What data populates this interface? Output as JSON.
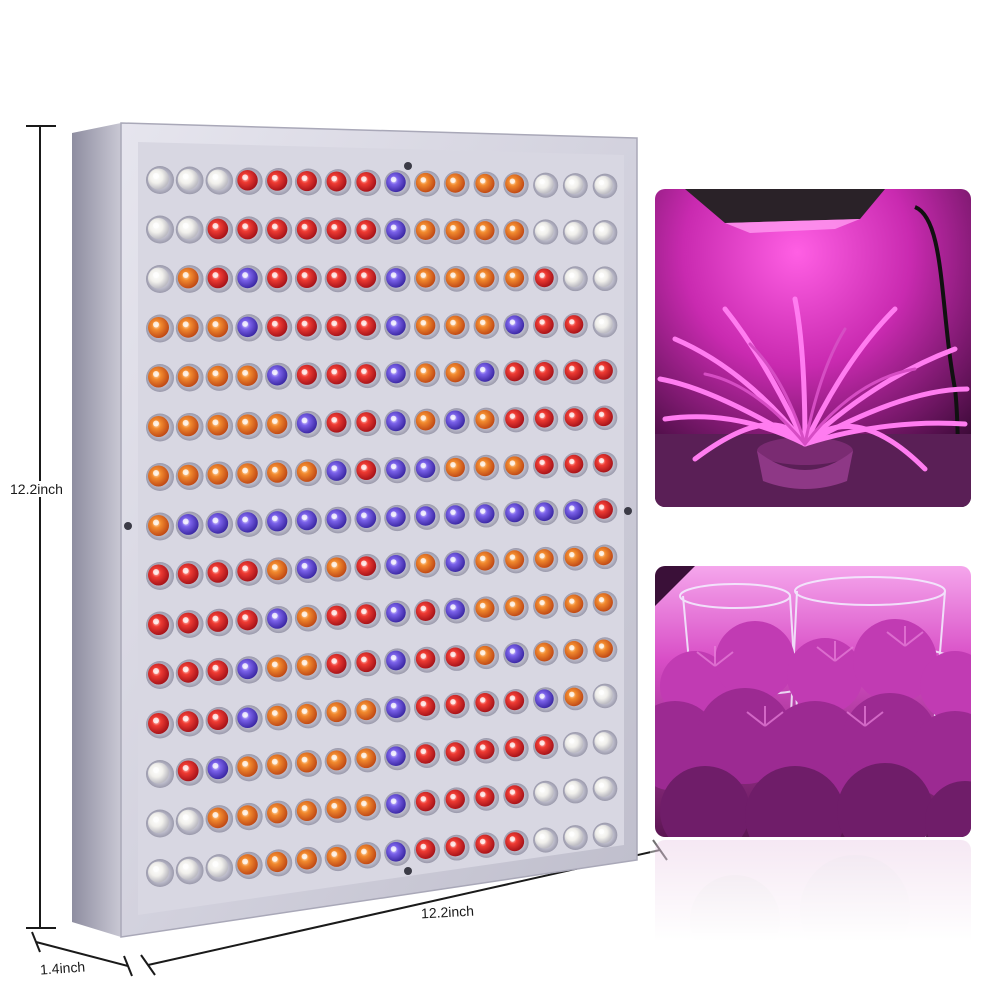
{
  "dimensions": {
    "height": "12.2inch",
    "width": "12.2inch",
    "depth": "1.4inch"
  },
  "colors": {
    "panel_frame": "#b9b8c6",
    "panel_face": "#d9d8e2",
    "led_red": "#e0322d",
    "led_orange": "#e9752a",
    "led_blue": "#6c4fd8",
    "led_white": "#f2f2f0",
    "grow_light_pink": "#e040c8"
  },
  "led_grid": {
    "rows": [
      "WWWRRRRRBOOOOWWW",
      "WWRRRRRRBOOOOWWW",
      "WORBRRRRBOOOORWW",
      "OOOBRRRRBOOOBRRW",
      "OOOOBRRRBOOBRRRR",
      "OOOOOBRRBOBORRRR",
      "OOOOOOBRBBOOORRR",
      "OBBBBBBBBBBBBBBR",
      "RRRROBORBOBOOOOO",
      "RRRRBORRBRBOOOOO",
      "RRRBOORRBRROBOOO",
      "RRRBOOOOBRRRRBOW",
      "WRBOOOOOBRRRRRWW",
      "WWOOOOOOBRRRRWWW",
      "WWWOOOOOBRRRRWWW"
    ]
  }
}
